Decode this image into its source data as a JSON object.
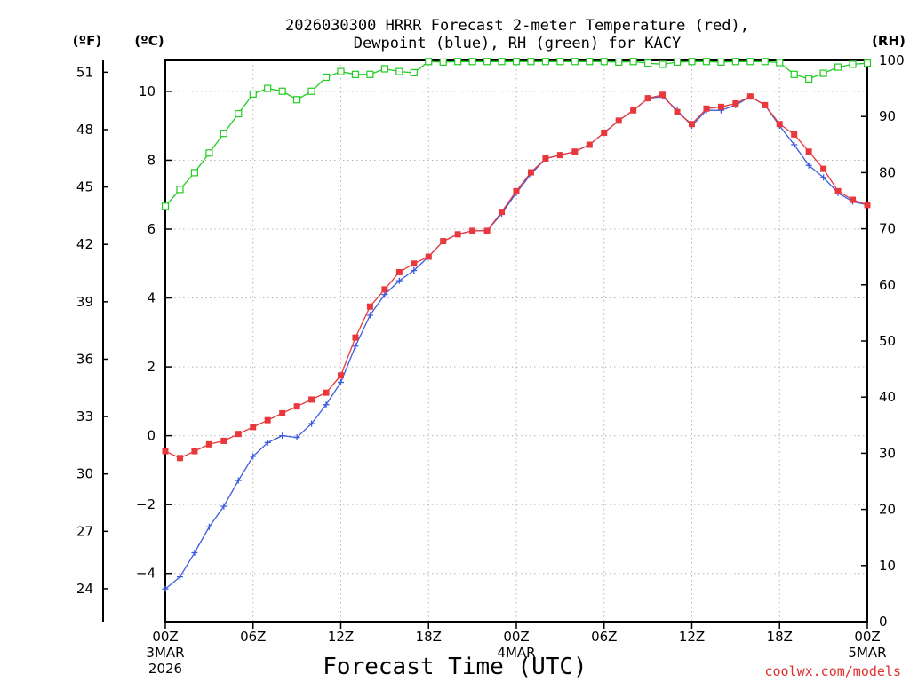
{
  "chart_data": {
    "type": "line",
    "title_line1": "2026030300 HRRR Forecast 2-meter Temperature (red),",
    "title_line2": "Dewpoint (blue), RH (green) for KACY",
    "xlabel": "Forecast Time (UTC)",
    "credit": "coolwx.com/models",
    "units": {
      "fahrenheit": "(ºF)",
      "celsius": "(ºC)",
      "rh": "(RH)"
    },
    "x_hours": [
      0,
      1,
      2,
      3,
      4,
      5,
      6,
      7,
      8,
      9,
      10,
      11,
      12,
      13,
      14,
      15,
      16,
      17,
      18,
      19,
      20,
      21,
      22,
      23,
      24,
      25,
      26,
      27,
      28,
      29,
      30,
      31,
      32,
      33,
      34,
      35,
      36,
      37,
      38,
      39,
      40,
      41,
      42,
      43,
      44,
      45,
      46,
      47,
      48
    ],
    "x_ticks": [
      {
        "hour": 0,
        "label": "00Z",
        "sub1": "3MAR",
        "sub2": "2026"
      },
      {
        "hour": 6,
        "label": "06Z",
        "sub1": "",
        "sub2": ""
      },
      {
        "hour": 12,
        "label": "12Z",
        "sub1": "",
        "sub2": ""
      },
      {
        "hour": 18,
        "label": "18Z",
        "sub1": "",
        "sub2": ""
      },
      {
        "hour": 24,
        "label": "00Z",
        "sub1": "4MAR",
        "sub2": ""
      },
      {
        "hour": 30,
        "label": "06Z",
        "sub1": "",
        "sub2": ""
      },
      {
        "hour": 36,
        "label": "12Z",
        "sub1": "",
        "sub2": ""
      },
      {
        "hour": 42,
        "label": "18Z",
        "sub1": "",
        "sub2": ""
      },
      {
        "hour": 48,
        "label": "00Z",
        "sub1": "5MAR",
        "sub2": ""
      }
    ],
    "ylim_celsius": [
      -5.4,
      10.9
    ],
    "yticks_celsius": [
      {
        "v": -4,
        "label": "−4"
      },
      {
        "v": -2,
        "label": "−2"
      },
      {
        "v": 0,
        "label": "0"
      },
      {
        "v": 2,
        "label": "2"
      },
      {
        "v": 4,
        "label": "4"
      },
      {
        "v": 6,
        "label": "6"
      },
      {
        "v": 8,
        "label": "8"
      },
      {
        "v": 10,
        "label": "10"
      }
    ],
    "yticks_fahrenheit": [
      {
        "v": 24,
        "label": "24"
      },
      {
        "v": 27,
        "label": "27"
      },
      {
        "v": 30,
        "label": "30"
      },
      {
        "v": 33,
        "label": "33"
      },
      {
        "v": 36,
        "label": "36"
      },
      {
        "v": 39,
        "label": "39"
      },
      {
        "v": 42,
        "label": "42"
      },
      {
        "v": 45,
        "label": "45"
      },
      {
        "v": 48,
        "label": "48"
      },
      {
        "v": 51,
        "label": "51"
      }
    ],
    "ylim_rh": [
      0,
      100
    ],
    "yticks_rh": [
      {
        "v": 0,
        "label": "0"
      },
      {
        "v": 10,
        "label": "10"
      },
      {
        "v": 20,
        "label": "20"
      },
      {
        "v": 30,
        "label": "30"
      },
      {
        "v": 40,
        "label": "40"
      },
      {
        "v": 50,
        "label": "50"
      },
      {
        "v": 60,
        "label": "60"
      },
      {
        "v": 70,
        "label": "70"
      },
      {
        "v": 80,
        "label": "80"
      },
      {
        "v": 90,
        "label": "90"
      },
      {
        "v": 100,
        "label": "100"
      }
    ],
    "grid": true,
    "series": [
      {
        "name": "Temperature (red)",
        "color": "#e8383c",
        "marker": "filled-square",
        "axis": "celsius",
        "values": [
          -0.45,
          -0.65,
          -0.45,
          -0.25,
          -0.15,
          0.05,
          0.25,
          0.45,
          0.65,
          0.85,
          1.05,
          1.25,
          1.75,
          2.85,
          3.75,
          4.25,
          4.75,
          5.0,
          5.2,
          5.65,
          5.85,
          5.95,
          5.95,
          6.5,
          7.1,
          7.65,
          8.05,
          8.15,
          8.25,
          8.45,
          8.8,
          9.15,
          9.45,
          9.8,
          9.9,
          9.4,
          9.05,
          9.5,
          9.55,
          9.65,
          9.85,
          9.6,
          9.05,
          8.75,
          8.25,
          7.75,
          7.1,
          6.85,
          6.7
        ]
      },
      {
        "name": "Dewpoint (blue)",
        "color": "#3c5ce0",
        "marker": "plus",
        "axis": "celsius",
        "values": [
          -4.45,
          -4.1,
          -3.4,
          -2.65,
          -2.05,
          -1.3,
          -0.6,
          -0.2,
          0.0,
          -0.05,
          0.35,
          0.9,
          1.55,
          2.6,
          3.5,
          4.1,
          4.5,
          4.8,
          5.2,
          5.65,
          5.85,
          5.95,
          5.95,
          6.45,
          7.05,
          7.6,
          8.05,
          8.15,
          8.25,
          8.45,
          8.8,
          9.15,
          9.45,
          9.8,
          9.85,
          9.45,
          9.0,
          9.45,
          9.45,
          9.6,
          9.85,
          9.6,
          9.0,
          8.45,
          7.85,
          7.5,
          7.05,
          6.8,
          6.7
        ]
      },
      {
        "name": "RH (green)",
        "color": "#22cc22",
        "marker": "open-square",
        "axis": "rh",
        "values": [
          74,
          77,
          80,
          83.5,
          87,
          90.5,
          94,
          95,
          94.5,
          93,
          94.5,
          97,
          98,
          97.5,
          97.5,
          98.5,
          98,
          97.8,
          99.8,
          99.7,
          99.8,
          99.8,
          99.8,
          99.8,
          99.8,
          99.8,
          99.8,
          99.8,
          99.8,
          99.8,
          99.8,
          99.7,
          99.8,
          99.5,
          99.3,
          99.7,
          99.8,
          99.8,
          99.7,
          99.8,
          99.8,
          99.8,
          99.6,
          97.5,
          96.7,
          97.7,
          98.8,
          99.3,
          99.5
        ]
      }
    ]
  }
}
